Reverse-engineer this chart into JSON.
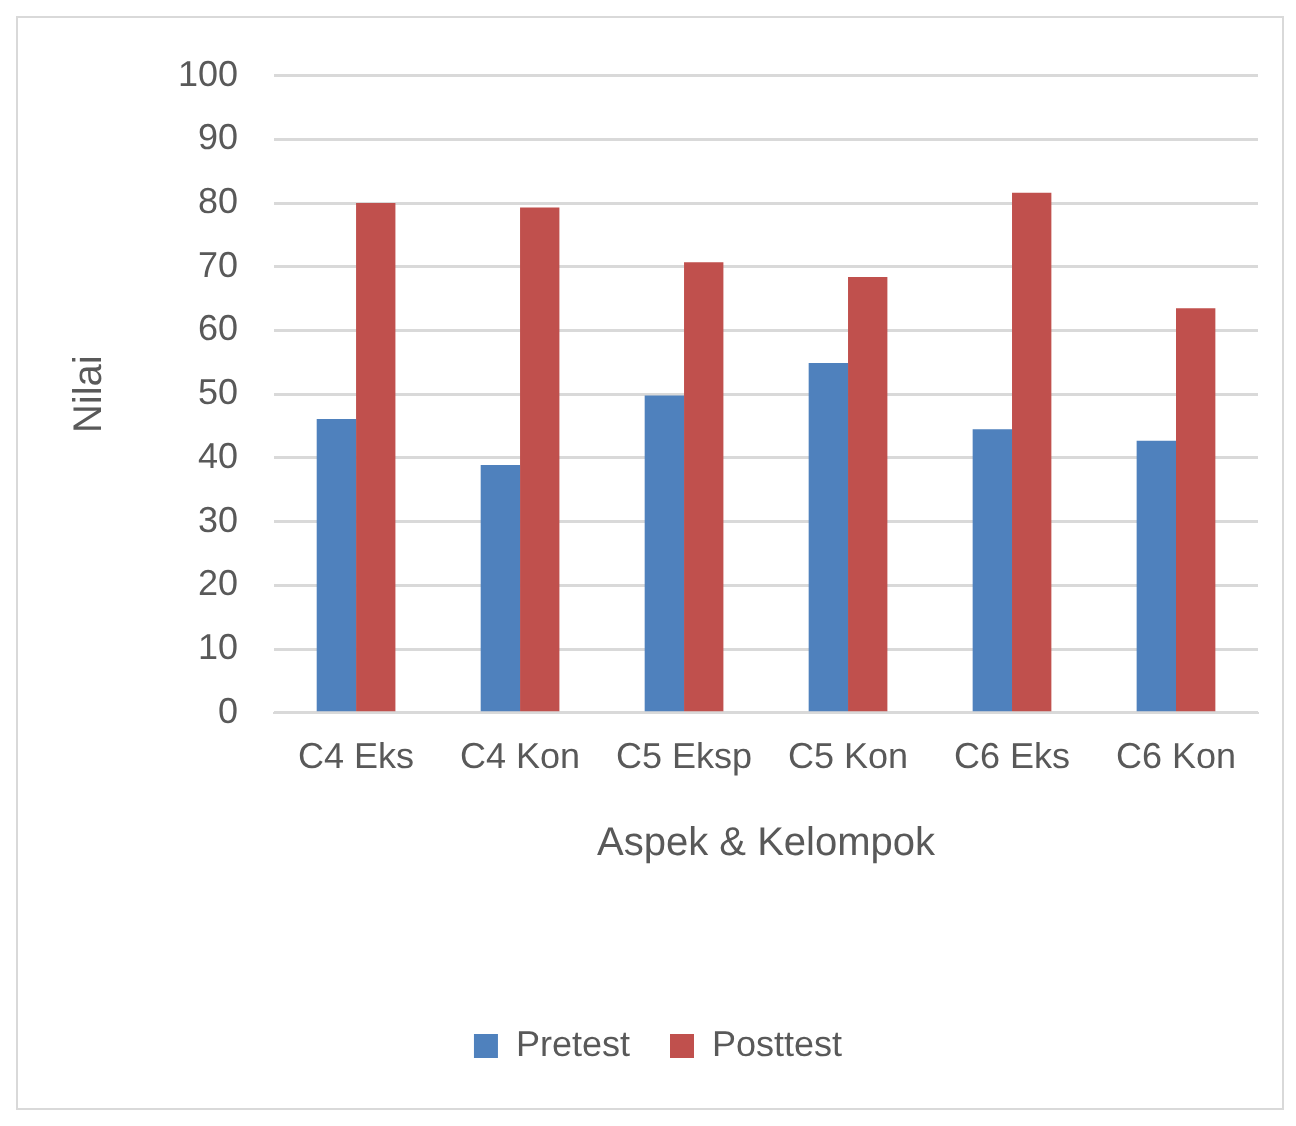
{
  "chart_data": {
    "type": "bar",
    "xlabel": "Aspek & Kelompok",
    "ylabel": "Nilai",
    "categories": [
      "C4 Eks",
      "C4 Kon",
      "C5 Eksp",
      "C5 Kon",
      "C6 Eks",
      "C6 Kon"
    ],
    "series": [
      {
        "name": "Pretest",
        "color": "#4f81bd",
        "values": [
          46.1,
          38.9,
          49.8,
          54.9,
          44.5,
          42.7
        ]
      },
      {
        "name": "Posttest",
        "color": "#c0504d",
        "values": [
          80.0,
          79.3,
          70.7,
          68.4,
          81.6,
          63.5
        ]
      }
    ],
    "ylim": [
      0,
      100
    ],
    "yticks": [
      0,
      10,
      20,
      30,
      40,
      50,
      60,
      70,
      80,
      90,
      100
    ],
    "grid": "y",
    "legend": "bottom"
  }
}
